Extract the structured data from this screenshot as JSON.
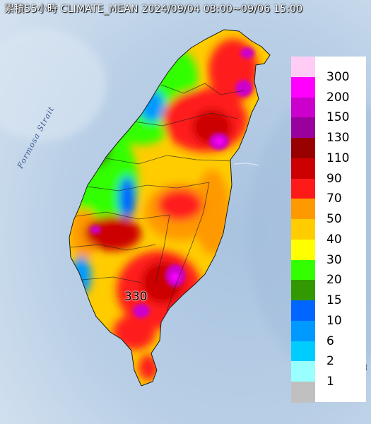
{
  "map": {
    "title": "累積55小時 CLIMATE_MEAN 2024/09/04 08:00~09/06 15:00",
    "sea_label": "Formosa Strait",
    "peak_label": "330",
    "edge_tag": "1("
  },
  "legend": {
    "items": [
      {
        "label": "300",
        "color": "#ffccf5"
      },
      {
        "label": "200",
        "color": "#ff00ff"
      },
      {
        "label": "150",
        "color": "#cc00cc"
      },
      {
        "label": "130",
        "color": "#99009e"
      },
      {
        "label": "110",
        "color": "#990000"
      },
      {
        "label": "90",
        "color": "#cc0000"
      },
      {
        "label": "70",
        "color": "#ff1a1a"
      },
      {
        "label": "50",
        "color": "#ff9900"
      },
      {
        "label": "40",
        "color": "#ffcc00"
      },
      {
        "label": "30",
        "color": "#ffff00"
      },
      {
        "label": "20",
        "color": "#33ff00"
      },
      {
        "label": "15",
        "color": "#339900"
      },
      {
        "label": "10",
        "color": "#0066ff"
      },
      {
        "label": "6",
        "color": "#0099ff"
      },
      {
        "label": "2",
        "color": "#00ccff"
      },
      {
        "label": "1",
        "color": "#99ffff"
      },
      {
        "label": "",
        "color": "#c0c0c0"
      }
    ]
  }
}
